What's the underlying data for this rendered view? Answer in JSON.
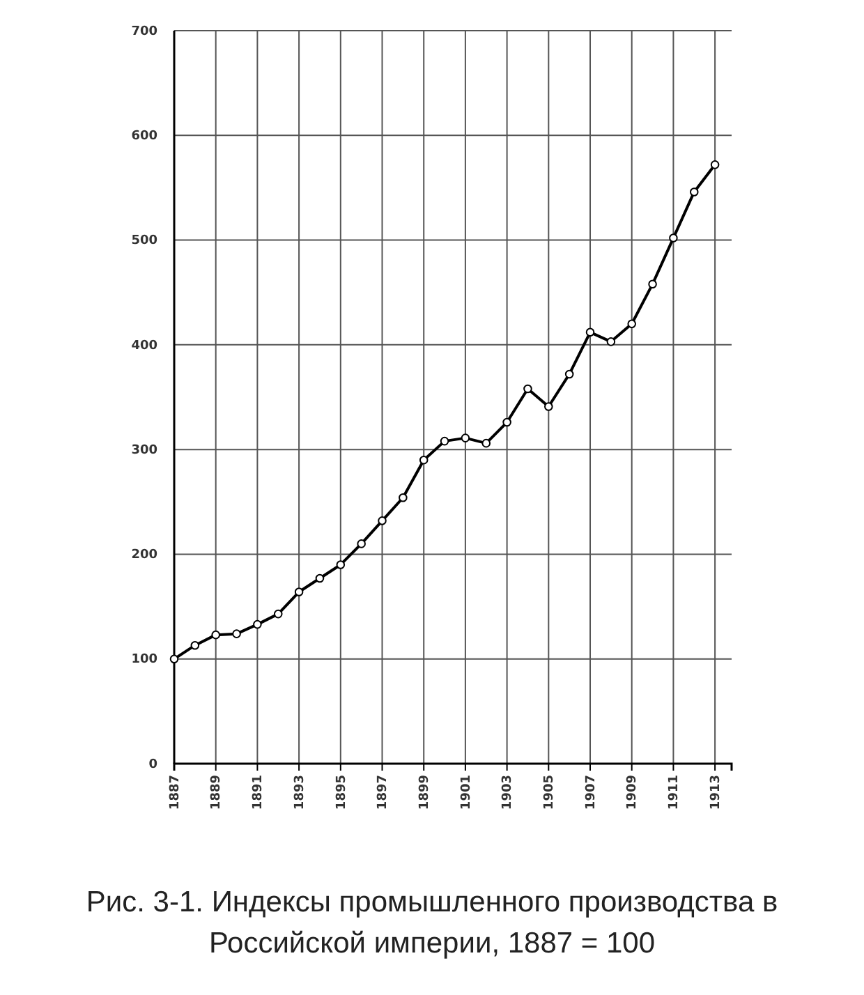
{
  "chart_data": {
    "type": "line",
    "title": "Рис. 3-1. Индексы промышленного производства в Российской империи, 1887 = 100",
    "x": [
      1887,
      1888,
      1889,
      1890,
      1891,
      1892,
      1893,
      1894,
      1895,
      1896,
      1897,
      1898,
      1899,
      1900,
      1901,
      1902,
      1903,
      1904,
      1905,
      1906,
      1907,
      1908,
      1909,
      1910,
      1911,
      1912,
      1913
    ],
    "series": [
      {
        "color": "#000000",
        "values": [
          100,
          113,
          123,
          124,
          133,
          143,
          164,
          177,
          190,
          210,
          232,
          254,
          290,
          308,
          311,
          306,
          326,
          358,
          341,
          372,
          412,
          403,
          420,
          458,
          502,
          546,
          572
        ]
      }
    ],
    "xlim": [
      1887,
      1913.8
    ],
    "xticks": [
      1887,
      1889,
      1891,
      1893,
      1895,
      1897,
      1899,
      1901,
      1903,
      1905,
      1907,
      1909,
      1911,
      1913
    ],
    "ylim": [
      0,
      700
    ],
    "yticks": [
      0,
      100,
      200,
      300,
      400,
      500,
      600,
      700
    ],
    "grid": true,
    "marker": "circle",
    "line_style": "solid"
  }
}
